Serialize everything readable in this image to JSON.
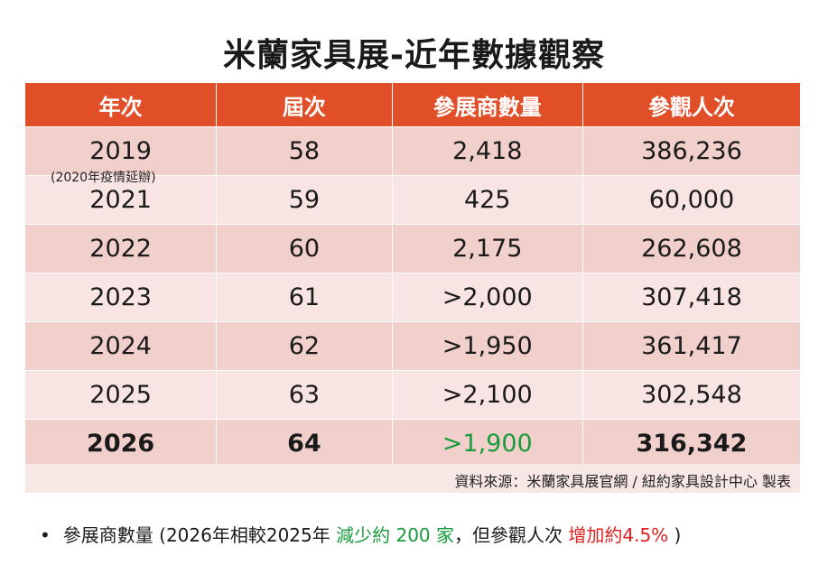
{
  "title": "米蘭家具展-近年數據觀察",
  "table": {
    "headers": [
      "年次",
      "屆次",
      "參展商數量",
      "參觀人次"
    ],
    "rows": [
      {
        "year": "2019",
        "session": "58",
        "exhibitors": "2,418",
        "visitors": "386,236"
      },
      {
        "year": "2021",
        "session": "59",
        "exhibitors": "425",
        "visitors": "60,000"
      },
      {
        "year": "2022",
        "session": "60",
        "exhibitors": "2,175",
        "visitors": "262,608"
      },
      {
        "year": "2023",
        "session": "61",
        "exhibitors": ">2,000",
        "visitors": "307,418"
      },
      {
        "year": "2024",
        "session": "62",
        "exhibitors": ">1,950",
        "visitors": "361,417"
      },
      {
        "year": "2025",
        "session": "63",
        "exhibitors": ">2,100",
        "visitors": "302,548"
      },
      {
        "year": "2026",
        "session": "64",
        "exhibitors": ">1,900",
        "visitors": "316,342"
      }
    ],
    "note": "(2020年疫情延辦)",
    "source": "資料來源：米蘭家具展官網 / 紐約家具設計中心 製表"
  },
  "bullet": {
    "marker": "•",
    "part1": "參展商數量 (2026年相較2025年 ",
    "part2": "減少約 200 家",
    "part3": "，但參觀人次 ",
    "part4": "增加約4.5%",
    "part5": " )"
  },
  "colors": {
    "header_bg": "#e04f28",
    "row_dark": "#f1cfcb",
    "row_light": "#f8e5e3",
    "green": "#1a9b3c",
    "red": "#e02020"
  }
}
